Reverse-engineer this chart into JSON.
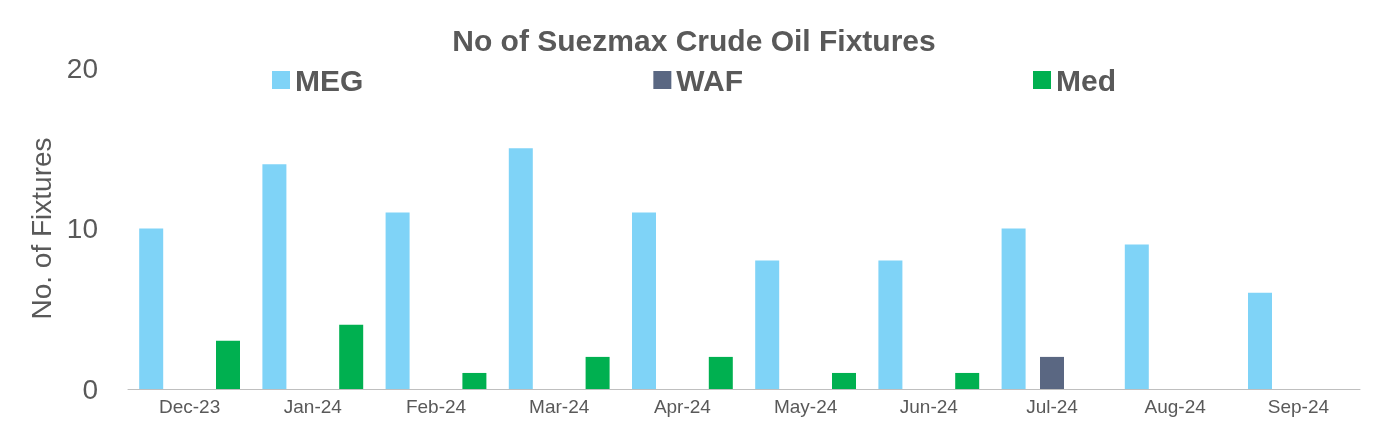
{
  "chart_data": {
    "type": "bar",
    "title": "No of Suezmax Crude Oil Fixtures",
    "ylabel": "No. of Fixtures",
    "categories": [
      "Dec-23",
      "Jan-24",
      "Feb-24",
      "Mar-24",
      "Apr-24",
      "May-24",
      "Jun-24",
      "Jul-24",
      "Aug-24",
      "Sep-24"
    ],
    "series": [
      {
        "name": "MEG",
        "color": "#7fd3f7",
        "values": [
          10,
          14,
          11,
          15,
          11,
          8,
          8,
          10,
          9,
          6
        ]
      },
      {
        "name": "WAF",
        "color": "#5a6782",
        "values": [
          0,
          0,
          0,
          0,
          0,
          0,
          0,
          2,
          0,
          0
        ]
      },
      {
        "name": "Med",
        "color": "#00b050",
        "values": [
          3,
          4,
          1,
          2,
          2,
          1,
          1,
          0,
          0,
          0
        ]
      }
    ],
    "ylim": [
      0,
      20
    ],
    "yticks": [
      0,
      10,
      20
    ],
    "grid": false,
    "legend": "top"
  }
}
